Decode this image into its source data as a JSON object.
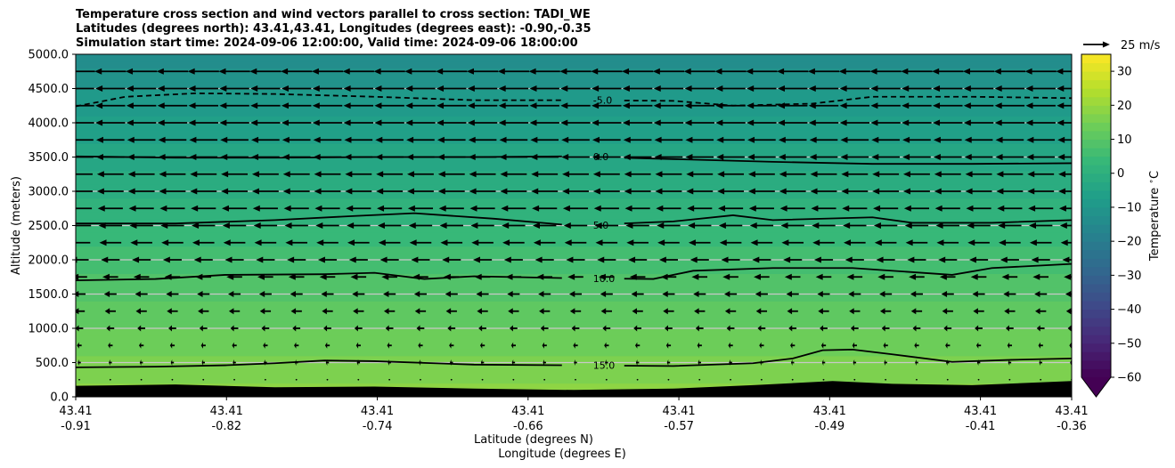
{
  "chart_data": {
    "type": "heatmap",
    "title_lines": [
      "Temperature cross section and wind vectors parallel to cross section: TADI_WE",
      "Latitudes (degrees north): 43.41,43.41, Longitudes (degrees east): -0.90,-0.35",
      "Simulation start time: 2024-09-06 12:00:00, Valid time: 2024-09-06 18:00:00"
    ],
    "xlabel": "Latitude (degrees N)",
    "xlabel2": "Longitude (degrees E)",
    "ylabel": "Altitude (meters)",
    "ylim": [
      0,
      5000
    ],
    "y_ticks": [
      "0.0",
      "500.0",
      "1000.0",
      "1500.0",
      "2000.0",
      "2500.0",
      "3000.0",
      "3500.0",
      "4000.0",
      "4500.0",
      "5000.0"
    ],
    "x_ticks": [
      {
        "lat": "43.41",
        "lon": "-0.91"
      },
      {
        "lat": "43.41",
        "lon": "-0.82"
      },
      {
        "lat": "43.41",
        "lon": "-0.74"
      },
      {
        "lat": "43.41",
        "lon": "-0.66"
      },
      {
        "lat": "43.41",
        "lon": "-0.57"
      },
      {
        "lat": "43.41",
        "lon": "-0.49"
      },
      {
        "lat": "43.41",
        "lon": "-0.41"
      },
      {
        "lat": "43.41",
        "lon": "-0.36"
      }
    ],
    "x_range": [
      0,
      1
    ],
    "colorbar": {
      "label": "Temperature $^\\circ$C",
      "range": [
        -60,
        35
      ],
      "ticks": [
        "30",
        "20",
        "10",
        "0",
        "−10",
        "−20",
        "−30",
        "−40",
        "−50",
        "−60"
      ],
      "extend": "min"
    },
    "quiver_key": {
      "label": "25 m/s",
      "speed": 25
    },
    "grid": true,
    "horizontal_gridlines_at": [
      500,
      1000,
      1500,
      2000,
      2500,
      3000,
      3500,
      4000,
      4500
    ],
    "temperature_lapse": {
      "surface_temp": 19,
      "per_1000m": -6.5
    },
    "contours": [
      {
        "label": "15.0",
        "style": "solid",
        "points": [
          [
            0,
            430
          ],
          [
            0.08,
            440
          ],
          [
            0.15,
            460
          ],
          [
            0.2,
            490
          ],
          [
            0.25,
            530
          ],
          [
            0.3,
            520
          ],
          [
            0.4,
            470
          ],
          [
            0.5,
            460
          ],
          [
            0.6,
            450
          ],
          [
            0.68,
            490
          ],
          [
            0.72,
            560
          ],
          [
            0.75,
            680
          ],
          [
            0.78,
            690
          ],
          [
            0.82,
            620
          ],
          [
            0.88,
            510
          ],
          [
            0.94,
            540
          ],
          [
            1,
            560
          ]
        ]
      },
      {
        "label": "10.0",
        "style": "solid",
        "points": [
          [
            0,
            1700
          ],
          [
            0.08,
            1720
          ],
          [
            0.15,
            1780
          ],
          [
            0.25,
            1790
          ],
          [
            0.3,
            1810
          ],
          [
            0.35,
            1720
          ],
          [
            0.4,
            1760
          ],
          [
            0.5,
            1730
          ],
          [
            0.58,
            1720
          ],
          [
            0.62,
            1840
          ],
          [
            0.7,
            1880
          ],
          [
            0.78,
            1880
          ],
          [
            0.88,
            1780
          ],
          [
            0.92,
            1880
          ],
          [
            1,
            1940
          ]
        ]
      },
      {
        "label": "5.0",
        "style": "solid",
        "points": [
          [
            0,
            2530
          ],
          [
            0.1,
            2530
          ],
          [
            0.2,
            2580
          ],
          [
            0.28,
            2640
          ],
          [
            0.34,
            2680
          ],
          [
            0.42,
            2600
          ],
          [
            0.5,
            2500
          ],
          [
            0.6,
            2560
          ],
          [
            0.66,
            2650
          ],
          [
            0.7,
            2580
          ],
          [
            0.8,
            2620
          ],
          [
            0.84,
            2540
          ],
          [
            0.92,
            2540
          ],
          [
            1,
            2580
          ]
        ]
      },
      {
        "label": "0.0",
        "style": "solid",
        "points": [
          [
            0,
            3510
          ],
          [
            0.1,
            3490
          ],
          [
            0.2,
            3490
          ],
          [
            0.3,
            3500
          ],
          [
            0.4,
            3500
          ],
          [
            0.5,
            3510
          ],
          [
            0.6,
            3470
          ],
          [
            0.7,
            3430
          ],
          [
            0.8,
            3400
          ],
          [
            0.9,
            3400
          ],
          [
            1,
            3410
          ]
        ]
      },
      {
        "label": "-5.0",
        "style": "dashed",
        "points": [
          [
            0,
            4240
          ],
          [
            0.05,
            4380
          ],
          [
            0.12,
            4430
          ],
          [
            0.2,
            4420
          ],
          [
            0.3,
            4380
          ],
          [
            0.4,
            4330
          ],
          [
            0.5,
            4330
          ],
          [
            0.6,
            4320
          ],
          [
            0.66,
            4250
          ],
          [
            0.74,
            4280
          ],
          [
            0.8,
            4380
          ],
          [
            0.9,
            4380
          ],
          [
            1,
            4360
          ]
        ]
      }
    ],
    "contour_label_x": 0.515,
    "terrain_altitude_m": [
      [
        0,
        160
      ],
      [
        0.1,
        180
      ],
      [
        0.2,
        140
      ],
      [
        0.3,
        150
      ],
      [
        0.4,
        120
      ],
      [
        0.5,
        100
      ],
      [
        0.6,
        120
      ],
      [
        0.68,
        170
      ],
      [
        0.76,
        230
      ],
      [
        0.82,
        190
      ],
      [
        0.9,
        170
      ],
      [
        1,
        230
      ]
    ],
    "wind_levels_m": [
      250,
      500,
      750,
      1000,
      1250,
      1500,
      1750,
      2000,
      2250,
      2500,
      2750,
      3000,
      3250,
      3500,
      3750,
      4000,
      4250,
      4500,
      4750
    ],
    "wind_u_mps_by_level": [
      -1,
      -2,
      -3,
      -5,
      -7,
      -8,
      -10,
      -12,
      -14,
      -15,
      -16,
      -17,
      -17,
      -18,
      -18,
      -19,
      -19,
      -19,
      -20
    ],
    "wind_columns": 33
  }
}
